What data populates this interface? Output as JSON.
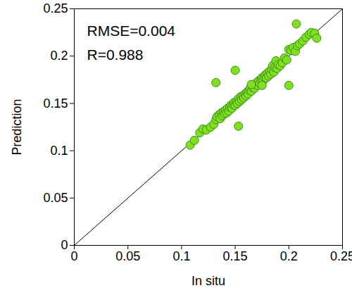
{
  "chart_data": {
    "type": "scatter",
    "x_label": "In situ",
    "y_label": "Prediction",
    "annotations": [
      "RMSE=0.004",
      "R=0.988"
    ],
    "color": "#80e020",
    "marker": "circle",
    "xlim": [
      0,
      0.25
    ],
    "ylim": [
      0,
      0.25
    ],
    "xticks": [
      0,
      0.05,
      0.1,
      0.15,
      0.2,
      0.25
    ],
    "yticks": [
      0,
      0.05,
      0.1,
      0.15,
      0.2,
      0.25
    ],
    "grid": false,
    "x": [
      0.108,
      0.112,
      0.117,
      0.12,
      0.123,
      0.127,
      0.13,
      0.132,
      0.133,
      0.135,
      0.136,
      0.137,
      0.138,
      0.139,
      0.14,
      0.141,
      0.142,
      0.143,
      0.144,
      0.145,
      0.146,
      0.147,
      0.148,
      0.149,
      0.15,
      0.151,
      0.152,
      0.153,
      0.154,
      0.155,
      0.156,
      0.157,
      0.158,
      0.159,
      0.16,
      0.161,
      0.162,
      0.163,
      0.164,
      0.165,
      0.166,
      0.167,
      0.168,
      0.169,
      0.17,
      0.171,
      0.172,
      0.173,
      0.174,
      0.175,
      0.176,
      0.177,
      0.178,
      0.179,
      0.18,
      0.181,
      0.182,
      0.183,
      0.184,
      0.185,
      0.186,
      0.187,
      0.188,
      0.189,
      0.19,
      0.192,
      0.194,
      0.196,
      0.198,
      0.2,
      0.202,
      0.204,
      0.206,
      0.208,
      0.21,
      0.213,
      0.216,
      0.219,
      0.221,
      0.224,
      0.226,
      0.132,
      0.15,
      0.153,
      0.2,
      0.207,
      0.165,
      0.175
    ],
    "values": [
      0.106,
      0.111,
      0.119,
      0.123,
      0.122,
      0.125,
      0.128,
      0.133,
      0.136,
      0.138,
      0.134,
      0.14,
      0.137,
      0.141,
      0.139,
      0.143,
      0.14,
      0.145,
      0.142,
      0.146,
      0.148,
      0.145,
      0.149,
      0.151,
      0.148,
      0.152,
      0.15,
      0.155,
      0.152,
      0.157,
      0.154,
      0.158,
      0.156,
      0.16,
      0.158,
      0.162,
      0.16,
      0.164,
      0.166,
      0.163,
      0.167,
      0.169,
      0.166,
      0.17,
      0.172,
      0.169,
      0.174,
      0.171,
      0.175,
      0.177,
      0.174,
      0.178,
      0.18,
      0.177,
      0.182,
      0.179,
      0.184,
      0.181,
      0.186,
      0.19,
      0.183,
      0.188,
      0.195,
      0.187,
      0.191,
      0.19,
      0.193,
      0.198,
      0.196,
      0.207,
      0.206,
      0.209,
      0.205,
      0.211,
      0.213,
      0.216,
      0.22,
      0.223,
      0.225,
      0.224,
      0.219,
      0.172,
      0.185,
      0.126,
      0.169,
      0.234,
      0.17,
      0.169
    ]
  }
}
